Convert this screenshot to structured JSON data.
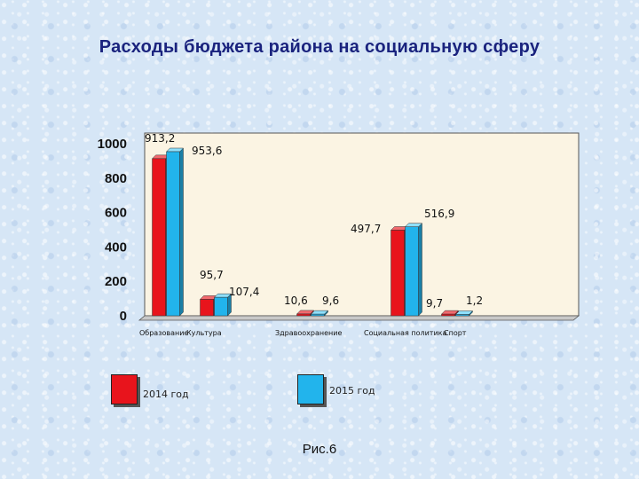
{
  "chart_data": {
    "type": "bar",
    "title": "Расходы бюджета района на социальную сферу",
    "categories": [
      "Образование",
      "Культура",
      "Здравоохранение",
      "Социальная политика",
      "Спорт"
    ],
    "series": [
      {
        "name": "2014 год",
        "color": "#e8141c",
        "values": [
          913.2,
          95.7,
          10.6,
          497.7,
          9.7
        ],
        "labels": [
          "913,2",
          "95,7",
          "10,6",
          "497,7",
          "9,7"
        ]
      },
      {
        "name": "2015 год",
        "color": "#22b4ec",
        "values": [
          953.6,
          107.4,
          9.6,
          516.9,
          1.2
        ],
        "labels": [
          "953,6",
          "107,4",
          "9,6",
          "516,9",
          "1,2"
        ]
      }
    ],
    "yticks": [
      "0",
      "200",
      "400",
      "600",
      "800",
      "1000"
    ],
    "ylim": [
      0,
      1000
    ],
    "grid": false,
    "legend_placement": "bottom"
  },
  "caption": "Рис.6"
}
